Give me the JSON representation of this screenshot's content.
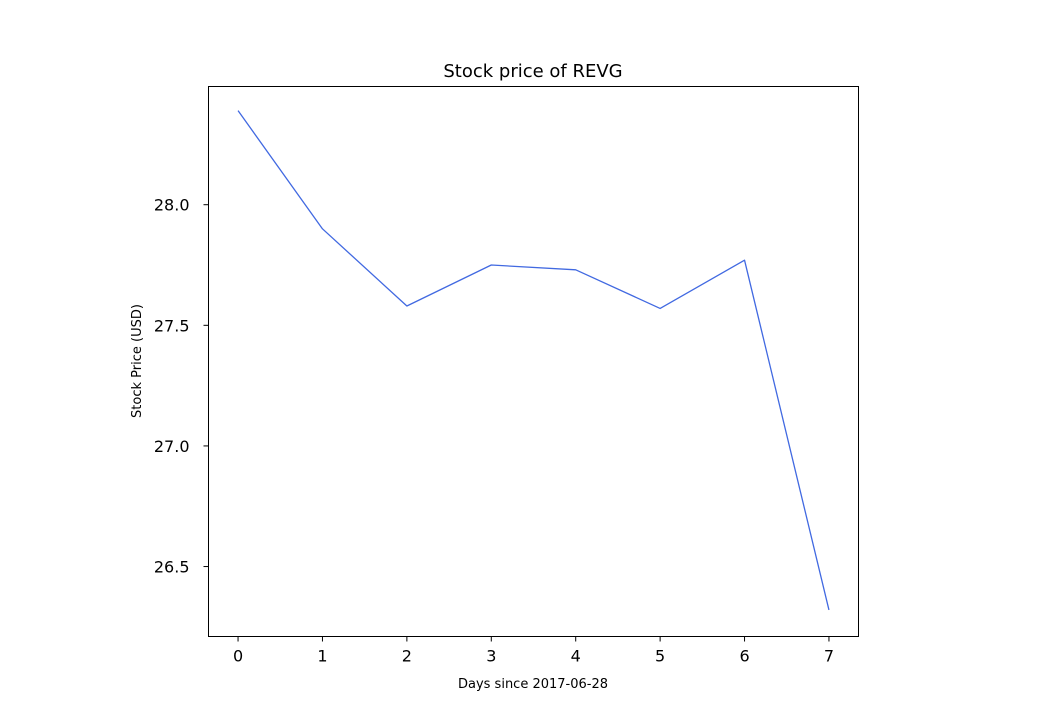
{
  "chart_data": {
    "type": "line",
    "title": "Stock price of REVG",
    "xlabel": "Days since 2017-06-28",
    "ylabel": "Stock Price (USD)",
    "x": [
      0,
      1,
      2,
      3,
      4,
      5,
      6,
      7
    ],
    "series": [
      {
        "values": [
          28.39,
          27.9,
          27.58,
          27.75,
          27.73,
          27.57,
          27.77,
          26.32
        ],
        "color": "#4169e1"
      }
    ],
    "xticks": [
      0,
      1,
      2,
      3,
      4,
      5,
      6,
      7
    ],
    "xtick_labels": [
      "0",
      "1",
      "2",
      "3",
      "4",
      "5",
      "6",
      "7"
    ],
    "yticks": [
      26.5,
      27.0,
      27.5,
      28.0
    ],
    "ytick_labels": [
      "26.5",
      "27.0",
      "27.5",
      "28.0"
    ],
    "xlim": [
      -0.35,
      7.35
    ],
    "ylim": [
      26.21,
      28.49
    ],
    "grid": false,
    "legend": false
  }
}
